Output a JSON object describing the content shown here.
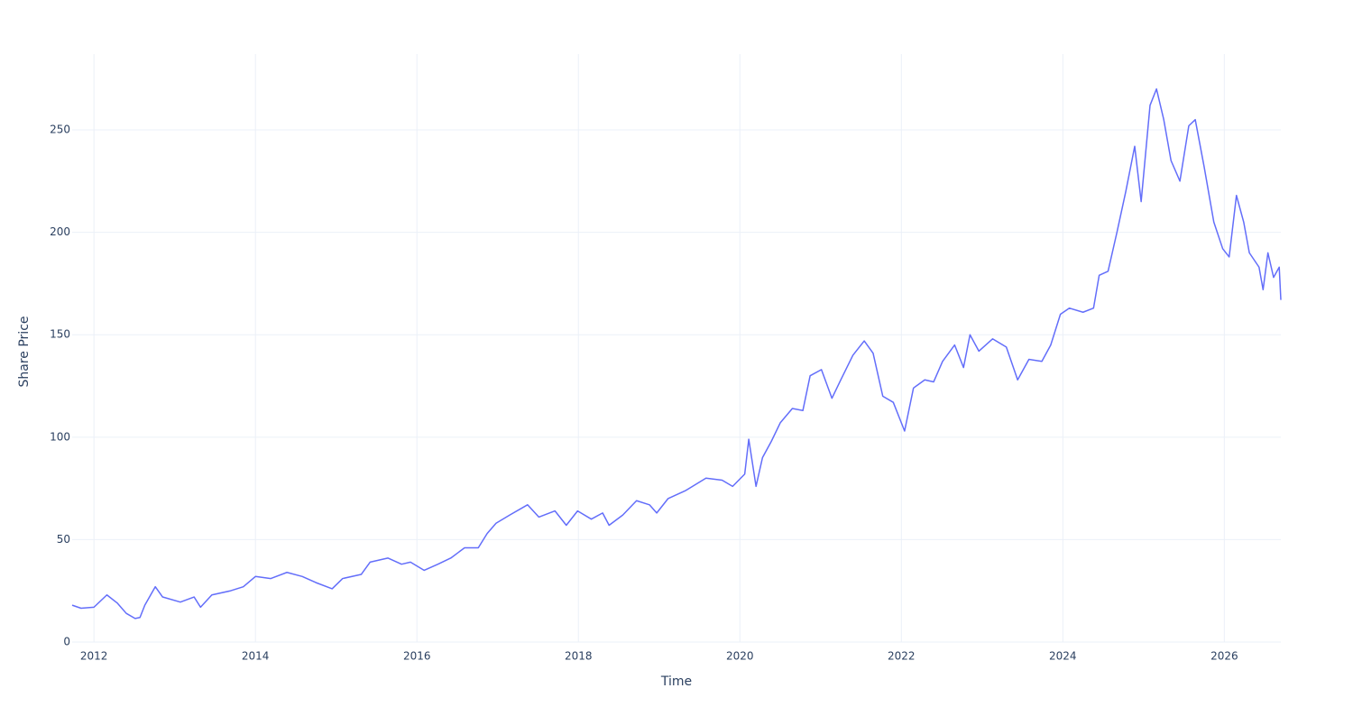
{
  "chart_data": {
    "type": "line",
    "x_label": "Time",
    "y_label": "Share Price",
    "x": [
      2011.73,
      2011.84,
      2012.0,
      2012.16,
      2012.29,
      2012.4,
      2012.51,
      2012.57,
      2012.63,
      2012.76,
      2012.85,
      2013.07,
      2013.24,
      2013.32,
      2013.46,
      2013.69,
      2013.85,
      2014.0,
      2014.19,
      2014.39,
      2014.58,
      2014.75,
      2014.95,
      2015.08,
      2015.31,
      2015.42,
      2015.64,
      2015.81,
      2015.92,
      2016.09,
      2016.26,
      2016.42,
      2016.59,
      2016.76,
      2016.87,
      2016.98,
      2017.15,
      2017.37,
      2017.51,
      2017.71,
      2017.85,
      2017.99,
      2018.16,
      2018.3,
      2018.38,
      2018.55,
      2018.72,
      2018.88,
      2018.97,
      2019.11,
      2019.33,
      2019.58,
      2019.78,
      2019.91,
      2020.06,
      2020.11,
      2020.2,
      2020.28,
      2020.39,
      2020.5,
      2020.65,
      2020.78,
      2020.87,
      2021.01,
      2021.14,
      2021.25,
      2021.4,
      2021.54,
      2021.65,
      2021.77,
      2021.9,
      2022.04,
      2022.15,
      2022.29,
      2022.4,
      2022.51,
      2022.66,
      2022.77,
      2022.85,
      2022.96,
      2023.13,
      2023.3,
      2023.44,
      2023.58,
      2023.74,
      2023.85,
      2023.97,
      2024.08,
      2024.25,
      2024.38,
      2024.45,
      2024.56,
      2024.67,
      2024.78,
      2024.89,
      2024.97,
      2025.08,
      2025.16,
      2025.25,
      2025.34,
      2025.45,
      2025.56,
      2025.64,
      2025.75,
      2025.87,
      2025.98,
      2026.06,
      2026.15,
      2026.24,
      2026.31,
      2026.43,
      2026.48,
      2026.54,
      2026.61,
      2026.68,
      2026.7
    ],
    "series": [
      {
        "name": "Share Price",
        "color": "#636efa",
        "values": [
          18,
          16.5,
          17,
          23,
          19,
          14,
          11.5,
          12,
          18,
          27,
          22,
          19.5,
          22,
          17,
          23,
          25,
          27,
          32,
          31,
          34,
          32,
          29,
          26,
          31,
          33,
          39,
          41,
          38,
          39,
          35,
          38,
          41,
          46,
          46,
          53,
          58,
          62,
          67,
          61,
          64,
          57,
          64,
          60,
          63,
          57,
          62,
          69,
          67,
          63,
          70,
          74,
          80,
          79,
          76,
          82,
          99,
          76,
          90,
          98,
          107,
          114,
          113,
          130,
          133,
          119,
          128,
          140,
          147,
          141,
          120,
          117,
          103,
          124,
          128,
          127,
          137,
          145,
          134,
          150,
          142,
          148,
          144,
          128,
          138,
          137,
          145,
          160,
          163,
          161,
          163,
          179,
          181,
          200,
          220,
          242,
          215,
          262,
          270,
          255,
          235,
          225,
          252,
          255,
          232,
          205,
          192,
          188,
          218,
          205,
          190,
          183,
          172,
          190,
          178,
          183,
          167
        ]
      }
    ],
    "xlim": [
      2011.73,
      2026.7
    ],
    "ylim": [
      0,
      287
    ],
    "xticks": [
      2012,
      2014,
      2016,
      2018,
      2020,
      2022,
      2024,
      2026
    ],
    "yticks": [
      0,
      50,
      100,
      150,
      200,
      250
    ],
    "grid": true
  }
}
